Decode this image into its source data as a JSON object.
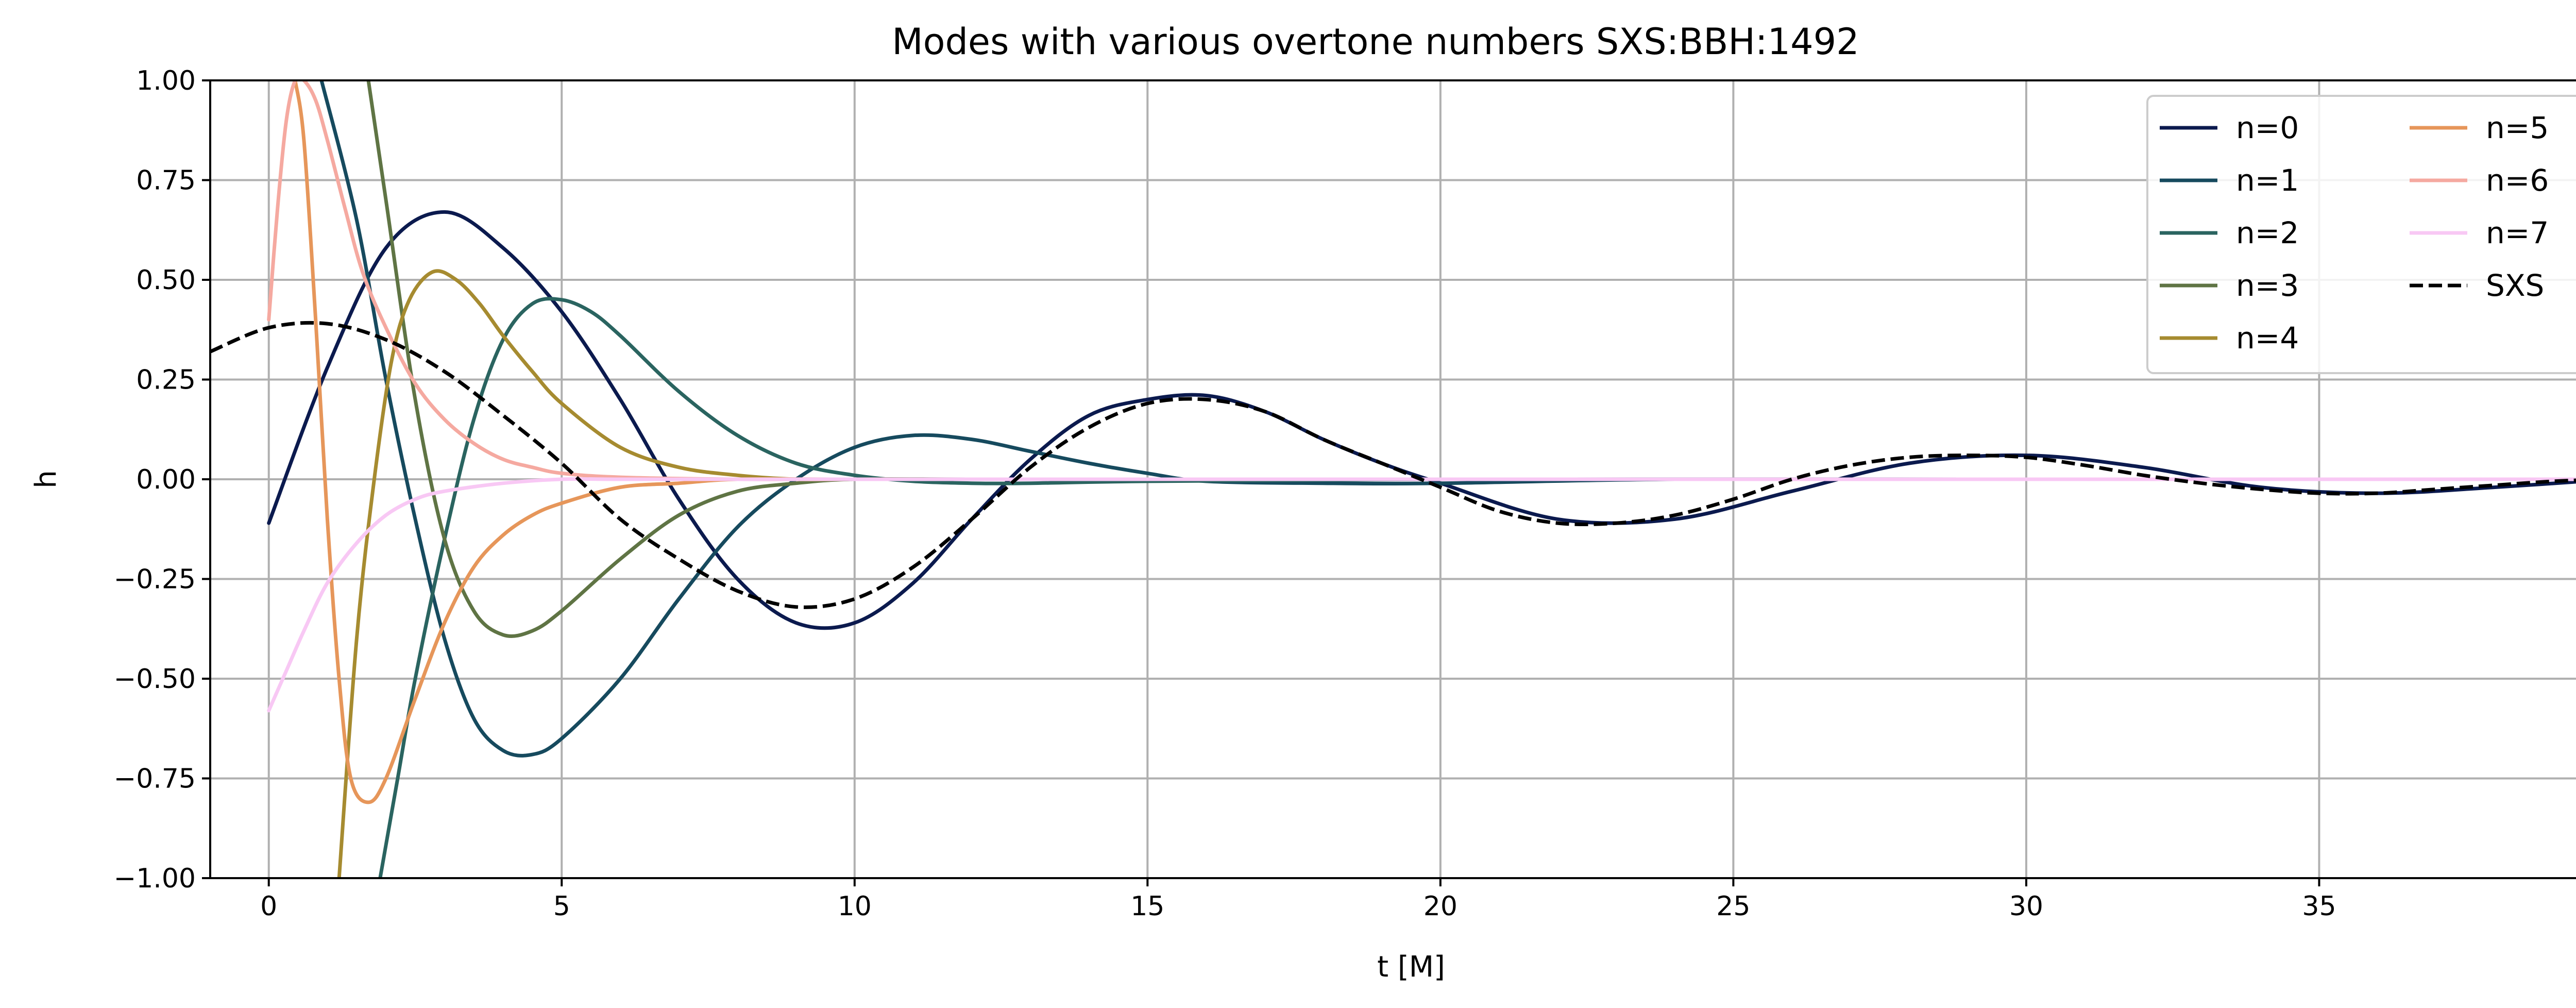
{
  "chart_data": {
    "type": "line",
    "title": "Modes with various overtone numbers SXS:BBH:1492",
    "xlabel": "t [M]",
    "ylabel": "h",
    "xlim": [
      -1,
      40
    ],
    "ylim": [
      -1.0,
      1.0
    ],
    "xticks": [
      0,
      5,
      10,
      15,
      20,
      25,
      30,
      35,
      40
    ],
    "yticks": [
      -1.0,
      -0.75,
      -0.5,
      -0.25,
      0.0,
      0.25,
      0.5,
      0.75,
      1.0
    ],
    "xtick_labels": [
      "0",
      "5",
      "10",
      "15",
      "20",
      "25",
      "30",
      "35",
      "40"
    ],
    "ytick_labels": [
      "−1.00",
      "−0.75",
      "−0.50",
      "−0.25",
      "0.00",
      "0.25",
      "0.50",
      "0.75",
      "1.00"
    ],
    "grid": true,
    "legend": {
      "placement": "top-right",
      "columns": 2
    },
    "series": [
      {
        "name": "n=0",
        "color": "#0b1a4e",
        "style": "solid",
        "x": [
          0,
          1,
          2,
          3,
          4,
          5,
          6,
          7,
          8,
          9,
          10,
          11,
          12,
          13,
          14,
          15,
          16,
          17,
          18,
          19,
          20,
          22,
          24,
          26,
          28,
          30,
          32,
          34,
          36,
          38,
          40
        ],
        "y": [
          -0.11,
          0.28,
          0.58,
          0.67,
          0.58,
          0.42,
          0.2,
          -0.05,
          -0.25,
          -0.36,
          -0.36,
          -0.26,
          -0.1,
          0.05,
          0.16,
          0.2,
          0.21,
          0.17,
          0.1,
          0.04,
          -0.01,
          -0.1,
          -0.1,
          -0.03,
          0.04,
          0.06,
          0.03,
          -0.02,
          -0.035,
          -0.02,
          0.0
        ]
      },
      {
        "name": "n=1",
        "color": "#164a5e",
        "style": "solid",
        "x": [
          0.9,
          1.5,
          2,
          2.5,
          3,
          3.5,
          4,
          4.5,
          5,
          6,
          7,
          8,
          9,
          10,
          11,
          12,
          13,
          14,
          15,
          16,
          18,
          20,
          24,
          30,
          40
        ],
        "y": [
          1.0,
          0.65,
          0.25,
          -0.1,
          -0.4,
          -0.6,
          -0.68,
          -0.69,
          -0.65,
          -0.5,
          -0.3,
          -0.12,
          0.0,
          0.08,
          0.11,
          0.1,
          0.07,
          0.04,
          0.015,
          -0.005,
          -0.01,
          -0.01,
          0.0,
          0.0,
          0.0
        ]
      },
      {
        "name": "n=2",
        "color": "#2a6460",
        "style": "solid",
        "x": [
          1.9,
          2.2,
          2.5,
          3,
          3.5,
          4,
          4.5,
          5,
          5.5,
          6,
          7,
          8,
          9,
          10,
          11,
          12,
          13,
          15,
          20,
          30,
          40
        ],
        "y": [
          -1.0,
          -0.75,
          -0.5,
          -0.15,
          0.15,
          0.35,
          0.44,
          0.45,
          0.42,
          0.36,
          0.22,
          0.11,
          0.04,
          0.01,
          -0.005,
          -0.01,
          -0.01,
          -0.005,
          0.0,
          0.0,
          0.0
        ]
      },
      {
        "name": "n=3",
        "color": "#5f7444",
        "style": "solid",
        "x": [
          1.7,
          2,
          2.5,
          3,
          3.5,
          4,
          4.5,
          5,
          6,
          7,
          8,
          9,
          10,
          12,
          15,
          20,
          30,
          40
        ],
        "y": [
          1.0,
          0.7,
          0.2,
          -0.15,
          -0.33,
          -0.39,
          -0.38,
          -0.33,
          -0.2,
          -0.09,
          -0.03,
          -0.01,
          0.0,
          0.0,
          0.0,
          0.0,
          0.0,
          0.0
        ]
      },
      {
        "name": "n=4",
        "color": "#a68b30",
        "style": "solid",
        "x": [
          1.2,
          1.5,
          1.8,
          2.1,
          2.4,
          2.8,
          3.2,
          3.6,
          4,
          4.5,
          5,
          6,
          7,
          8,
          9,
          10,
          12,
          15,
          20,
          30,
          40
        ],
        "y": [
          -1.0,
          -0.4,
          0.0,
          0.3,
          0.45,
          0.52,
          0.5,
          0.44,
          0.36,
          0.27,
          0.19,
          0.08,
          0.03,
          0.01,
          0.0,
          0.0,
          0.0,
          0.0,
          0.0,
          0.0,
          0.0
        ]
      },
      {
        "name": "n=5",
        "color": "#e6965a",
        "style": "solid",
        "x": [
          0.45,
          0.6,
          0.8,
          1.0,
          1.2,
          1.4,
          1.7,
          2.0,
          2.5,
          3,
          3.5,
          4,
          4.5,
          5,
          6,
          7,
          8,
          10,
          15,
          20,
          40
        ],
        "y": [
          1.0,
          0.85,
          0.4,
          -0.1,
          -0.5,
          -0.75,
          -0.81,
          -0.75,
          -0.55,
          -0.36,
          -0.22,
          -0.14,
          -0.09,
          -0.06,
          -0.02,
          -0.01,
          0.0,
          0.0,
          0.0,
          0.0,
          0.0
        ]
      },
      {
        "name": "n=6",
        "color": "#f5a9a0",
        "style": "solid",
        "x": [
          0,
          0.15,
          0.3,
          0.45,
          0.6,
          0.8,
          1.0,
          1.3,
          1.6,
          2.0,
          2.5,
          3,
          3.5,
          4,
          4.5,
          5,
          6,
          8,
          10,
          15,
          20,
          40
        ],
        "y": [
          0.4,
          0.68,
          0.9,
          1.0,
          1.0,
          0.95,
          0.85,
          0.68,
          0.52,
          0.38,
          0.24,
          0.15,
          0.09,
          0.05,
          0.03,
          0.015,
          0.005,
          0.0,
          0.0,
          0.0,
          0.0,
          0.0
        ]
      },
      {
        "name": "n=7",
        "color": "#f8c8f4",
        "style": "solid",
        "x": [
          0,
          0.3,
          0.6,
          1.0,
          1.5,
          2.0,
          2.5,
          3,
          4,
          5,
          6,
          8,
          10,
          15,
          20,
          30,
          40
        ],
        "y": [
          -0.58,
          -0.48,
          -0.38,
          -0.26,
          -0.16,
          -0.09,
          -0.05,
          -0.03,
          -0.01,
          0.0,
          0.0,
          0.0,
          0.0,
          0.0,
          0.0,
          0.0,
          0.0
        ]
      },
      {
        "name": "SXS",
        "color": "#000000",
        "style": "dashed",
        "x": [
          -1,
          0,
          1,
          2,
          3,
          4,
          5,
          6,
          7,
          8,
          9,
          10,
          11,
          12,
          13,
          14,
          15,
          16,
          17,
          18,
          19,
          20,
          21,
          22,
          23,
          24,
          25,
          26,
          27,
          28,
          29,
          30,
          31,
          32,
          33,
          34,
          35,
          36,
          37,
          38,
          39,
          40
        ],
        "y": [
          0.32,
          0.38,
          0.39,
          0.35,
          0.27,
          0.16,
          0.04,
          -0.1,
          -0.2,
          -0.28,
          -0.32,
          -0.3,
          -0.22,
          -0.1,
          0.03,
          0.13,
          0.19,
          0.2,
          0.17,
          0.1,
          0.04,
          -0.02,
          -0.08,
          -0.11,
          -0.11,
          -0.09,
          -0.05,
          0.0,
          0.035,
          0.055,
          0.06,
          0.055,
          0.035,
          0.01,
          -0.01,
          -0.025,
          -0.035,
          -0.035,
          -0.025,
          -0.015,
          -0.005,
          0.0
        ]
      }
    ]
  }
}
